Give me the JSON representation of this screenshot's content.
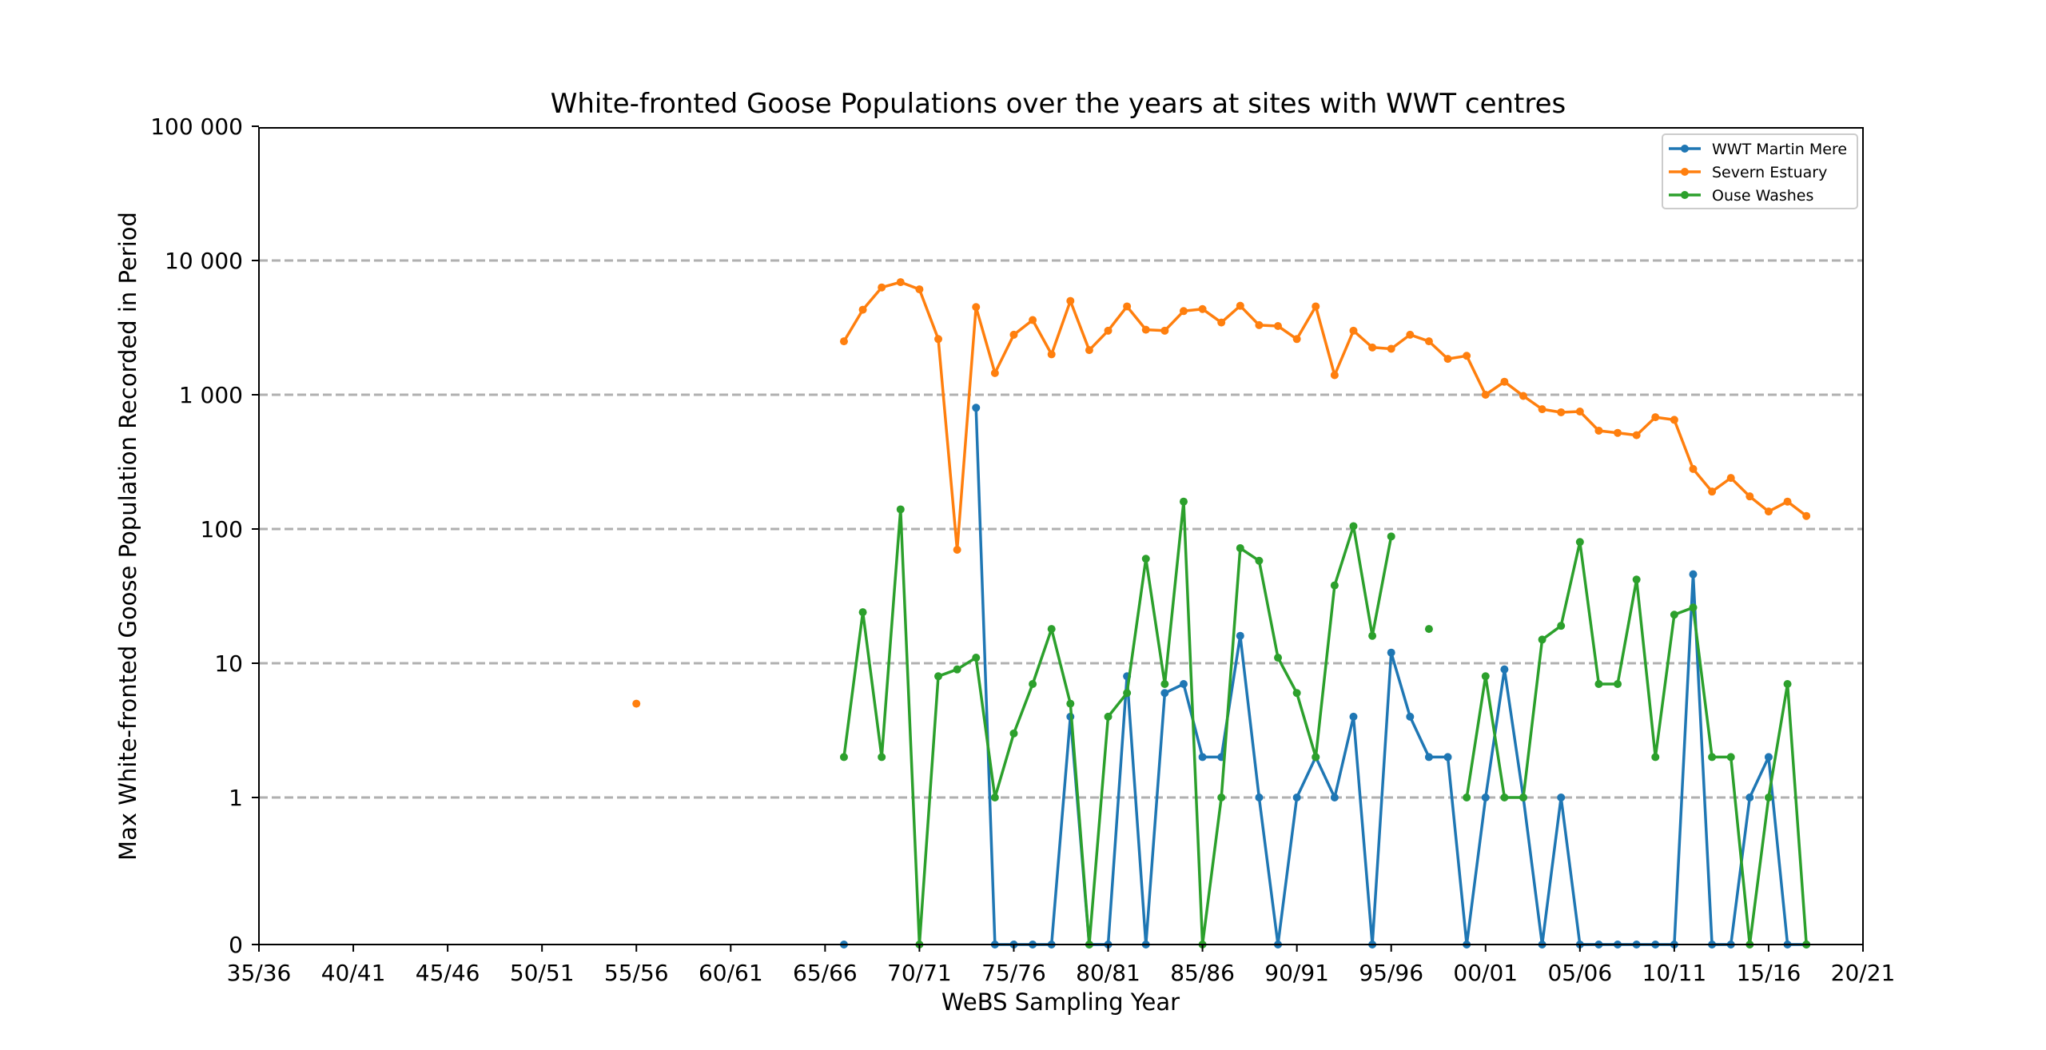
{
  "chart_data": {
    "type": "line",
    "title": "White-fronted Goose Populations over the years at sites with WWT centres",
    "xlabel": "WeBS Sampling Year",
    "ylabel": "Max White-fronted Goose Population Recorded in Period",
    "xscale": "linear (sampling year)",
    "yscale": "symlog",
    "x_range": [
      1935,
      2020
    ],
    "ylim": [
      0,
      100000
    ],
    "x_ticks": [
      {
        "year": 1935,
        "label": "35/36"
      },
      {
        "year": 1940,
        "label": "40/41"
      },
      {
        "year": 1945,
        "label": "45/46"
      },
      {
        "year": 1950,
        "label": "50/51"
      },
      {
        "year": 1955,
        "label": "55/56"
      },
      {
        "year": 1960,
        "label": "60/61"
      },
      {
        "year": 1965,
        "label": "65/66"
      },
      {
        "year": 1970,
        "label": "70/71"
      },
      {
        "year": 1975,
        "label": "75/76"
      },
      {
        "year": 1980,
        "label": "80/81"
      },
      {
        "year": 1985,
        "label": "85/86"
      },
      {
        "year": 1990,
        "label": "90/91"
      },
      {
        "year": 1995,
        "label": "95/96"
      },
      {
        "year": 2000,
        "label": "00/01"
      },
      {
        "year": 2005,
        "label": "05/06"
      },
      {
        "year": 2010,
        "label": "10/11"
      },
      {
        "year": 2015,
        "label": "15/16"
      },
      {
        "year": 2020,
        "label": "20/21"
      }
    ],
    "y_ticks": [
      {
        "value": 0,
        "label": "0"
      },
      {
        "value": 1,
        "label": "1"
      },
      {
        "value": 10,
        "label": "10"
      },
      {
        "value": 100,
        "label": "100"
      },
      {
        "value": 1000,
        "label": "1 000"
      },
      {
        "value": 10000,
        "label": "10 000"
      },
      {
        "value": 100000,
        "label": "100 000"
      }
    ],
    "grid": "horizontal dashed at 1, 10, 100, 1 000, 10 000",
    "legend_position": "top-right",
    "series": [
      {
        "name": "WWT Martin Mere",
        "color": "#1f77b4",
        "x": [
          1966,
          1967,
          1968,
          1969,
          1970,
          1971,
          1972,
          1973,
          1974,
          1975,
          1976,
          1977,
          1978,
          1979,
          1980,
          1981,
          1982,
          1983,
          1984,
          1985,
          1986,
          1987,
          1988,
          1989,
          1990,
          1991,
          1992,
          1993,
          1994,
          1995,
          1996,
          1997,
          1998,
          1999,
          2000,
          2001,
          2002,
          2003,
          2004,
          2005,
          2006,
          2007,
          2008,
          2009,
          2010,
          2011,
          2012,
          2013,
          2014,
          2015,
          2016,
          2017
        ],
        "y": [
          0,
          null,
          null,
          null,
          null,
          null,
          null,
          800,
          0,
          0,
          0,
          0,
          4,
          0,
          0,
          8,
          0,
          6,
          7,
          2,
          2,
          16,
          1,
          0,
          1,
          2,
          1,
          4,
          0,
          12,
          4,
          2,
          2,
          0,
          1,
          9,
          1,
          0,
          1,
          0,
          0,
          0,
          0,
          0,
          0,
          46,
          0,
          0,
          1,
          2,
          0,
          0
        ]
      },
      {
        "name": "Severn Estuary",
        "color": "#ff7f0e",
        "x": [
          1955,
          1966,
          1967,
          1968,
          1969,
          1970,
          1971,
          1972,
          1973,
          1974,
          1975,
          1976,
          1977,
          1978,
          1979,
          1980,
          1981,
          1982,
          1983,
          1984,
          1985,
          1986,
          1987,
          1988,
          1989,
          1990,
          1991,
          1992,
          1993,
          1994,
          1995,
          1996,
          1997,
          1998,
          1999,
          2000,
          2001,
          2002,
          2003,
          2004,
          2005,
          2006,
          2007,
          2008,
          2009,
          2010,
          2011,
          2012,
          2013,
          2014,
          2015,
          2016,
          2017
        ],
        "y": [
          5,
          2500,
          4300,
          6300,
          6900,
          6100,
          2600,
          70,
          4500,
          1450,
          2800,
          3600,
          2000,
          5000,
          2150,
          3000,
          4550,
          3050,
          3000,
          4200,
          4350,
          3450,
          4600,
          3300,
          3250,
          2600,
          4550,
          1400,
          3000,
          2250,
          2200,
          2800,
          2500,
          1850,
          1950,
          1000,
          1250,
          980,
          780,
          740,
          750,
          540,
          520,
          500,
          680,
          650,
          280,
          190,
          240,
          175,
          135,
          160,
          125
        ]
      },
      {
        "name": "Ouse Washes",
        "color": "#2ca02c",
        "x": [
          1966,
          1967,
          1968,
          1969,
          1970,
          1971,
          1972,
          1973,
          1974,
          1975,
          1976,
          1977,
          1978,
          1979,
          1980,
          1981,
          1982,
          1983,
          1984,
          1985,
          1986,
          1987,
          1988,
          1989,
          1990,
          1991,
          1992,
          1993,
          1994,
          1995,
          1996,
          1997,
          1998,
          1999,
          2000,
          2001,
          2002,
          2003,
          2004,
          2005,
          2006,
          2007,
          2008,
          2009,
          2010,
          2011,
          2012,
          2013,
          2014,
          2015,
          2016,
          2017
        ],
        "y": [
          2,
          24,
          2,
          140,
          0,
          8,
          9,
          11,
          1,
          3,
          7,
          18,
          5,
          0,
          4,
          6,
          60,
          7,
          160,
          0,
          1,
          72,
          58,
          11,
          6,
          2,
          38,
          105,
          16,
          88,
          null,
          18,
          null,
          1,
          8,
          1,
          1,
          15,
          19,
          80,
          7,
          7,
          42,
          2,
          23,
          26,
          2,
          2,
          0,
          1,
          7,
          0
        ]
      }
    ]
  }
}
